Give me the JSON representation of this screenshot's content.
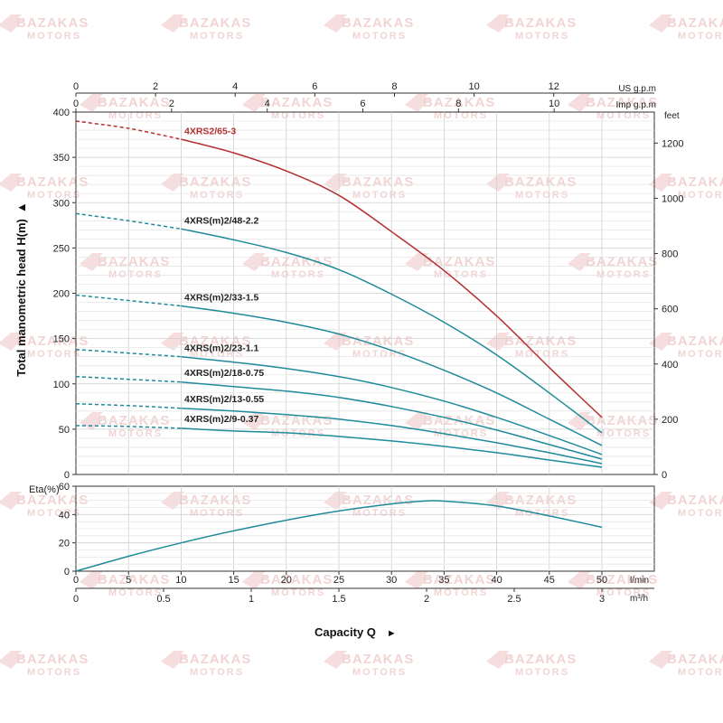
{
  "watermark": {
    "line1": "BAZAKAS",
    "line2": "MOTORS"
  },
  "chart_data": [
    {
      "type": "line",
      "ylabel": "Total manometric head H(m)",
      "ylabel_arrow": "▲",
      "ylim": [
        0,
        400
      ],
      "y_ticks": [
        0,
        50,
        100,
        150,
        200,
        250,
        300,
        350,
        400
      ],
      "right_axis": {
        "unit": "feet",
        "ticks": [
          0,
          200,
          400,
          600,
          800,
          1000,
          1200
        ]
      },
      "top_axis_us": {
        "unit": "US g.p.m",
        "ticks": [
          0,
          2,
          4,
          6,
          8,
          10,
          12
        ]
      },
      "top_axis_imp": {
        "unit": "Imp g.p.m",
        "ticks": [
          0,
          2,
          4,
          6,
          8,
          10
        ]
      },
      "grid": true,
      "series": [
        {
          "name": "4XRS2/65-3",
          "color": "#b5302f",
          "points": [
            [
              0,
              390
            ],
            [
              5,
              382
            ],
            [
              10,
              370
            ],
            [
              15,
              355
            ],
            [
              20,
              335
            ],
            [
              25,
              308
            ],
            [
              30,
              268
            ],
            [
              35,
              225
            ],
            [
              40,
              175
            ],
            [
              45,
              118
            ],
            [
              50,
              63
            ]
          ]
        },
        {
          "name": "4XRS(m)2/48-2.2",
          "color": "#1f8a9a",
          "points": [
            [
              0,
              288
            ],
            [
              5,
              280
            ],
            [
              10,
              271
            ],
            [
              15,
              259
            ],
            [
              20,
              245
            ],
            [
              25,
              226
            ],
            [
              30,
              199
            ],
            [
              35,
              168
            ],
            [
              40,
              132
            ],
            [
              45,
              90
            ],
            [
              50,
              46
            ]
          ]
        },
        {
          "name": "4XRS(m)2/33-1.5",
          "color": "#1f8a9a",
          "points": [
            [
              0,
              198
            ],
            [
              5,
              192
            ],
            [
              10,
              186
            ],
            [
              15,
              178
            ],
            [
              20,
              168
            ],
            [
              25,
              155
            ],
            [
              30,
              137
            ],
            [
              35,
              115
            ],
            [
              40,
              90
            ],
            [
              45,
              61
            ],
            [
              50,
              32
            ]
          ]
        },
        {
          "name": "4XRS(m)2/23-1.1",
          "color": "#1f8a9a",
          "points": [
            [
              0,
              138
            ],
            [
              5,
              134
            ],
            [
              10,
              130
            ],
            [
              15,
              124
            ],
            [
              20,
              117
            ],
            [
              25,
              108
            ],
            [
              30,
              96
            ],
            [
              35,
              81
            ],
            [
              40,
              63
            ],
            [
              45,
              43
            ],
            [
              50,
              22
            ]
          ]
        },
        {
          "name": "4XRS(m)2/18-0.75",
          "color": "#1f8a9a",
          "points": [
            [
              0,
              108
            ],
            [
              5,
              105
            ],
            [
              10,
              102
            ],
            [
              15,
              97
            ],
            [
              20,
              92
            ],
            [
              25,
              85
            ],
            [
              30,
              75
            ],
            [
              35,
              63
            ],
            [
              40,
              49
            ],
            [
              45,
              33
            ],
            [
              50,
              17
            ]
          ]
        },
        {
          "name": "4XRS(m)2/13-0.55",
          "color": "#1f8a9a",
          "points": [
            [
              0,
              78
            ],
            [
              5,
              76
            ],
            [
              10,
              73
            ],
            [
              15,
              70
            ],
            [
              20,
              66
            ],
            [
              25,
              61
            ],
            [
              30,
              54
            ],
            [
              35,
              45
            ],
            [
              40,
              35
            ],
            [
              45,
              24
            ],
            [
              50,
              12
            ]
          ]
        },
        {
          "name": "4XRS(m)2/9-0.37",
          "color": "#1f8a9a",
          "points": [
            [
              0,
              54
            ],
            [
              5,
              53
            ],
            [
              10,
              51
            ],
            [
              15,
              48
            ],
            [
              20,
              46
            ],
            [
              25,
              42
            ],
            [
              30,
              37
            ],
            [
              35,
              31
            ],
            [
              40,
              24
            ],
            [
              45,
              16
            ],
            [
              50,
              8
            ]
          ]
        }
      ]
    },
    {
      "type": "line",
      "ylabel": "Eta(%)",
      "ylim": [
        0,
        60
      ],
      "y_ticks": [
        0,
        20,
        40,
        60
      ],
      "x_lmin": {
        "unit": "l/min",
        "ticks": [
          0,
          5,
          10,
          15,
          20,
          25,
          30,
          35,
          40,
          45,
          50
        ]
      },
      "x_m3h": {
        "unit": "m³/h",
        "ticks": [
          0,
          0.5,
          1,
          1.5,
          2,
          2.5,
          3
        ]
      },
      "xlabel": "Capacity Q",
      "xlabel_arrow": "►",
      "grid": true,
      "series": [
        {
          "name": "Eta",
          "color": "#1f8a9a",
          "points": [
            [
              0,
              0
            ],
            [
              5,
              10.5
            ],
            [
              10,
              20
            ],
            [
              15,
              28.5
            ],
            [
              20,
              36
            ],
            [
              25,
              42.5
            ],
            [
              30,
              47.5
            ],
            [
              33,
              49.5
            ],
            [
              35,
              49.5
            ],
            [
              40,
              46
            ],
            [
              45,
              39
            ],
            [
              50,
              31
            ]
          ]
        }
      ]
    }
  ]
}
